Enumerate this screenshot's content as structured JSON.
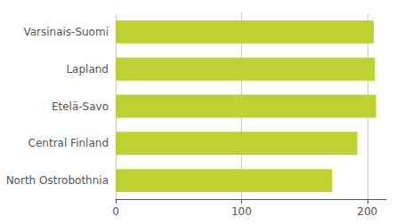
{
  "chart_data": {
    "type": "bar",
    "orientation": "horizontal",
    "categories": [
      "North Ostrobothnia",
      "Central Finland",
      "Etelä-Savo",
      "Lapland",
      "Varsinais-Suomi"
    ],
    "values": [
      172,
      192,
      207,
      206,
      205
    ],
    "color": "#bdd133",
    "xlim": [
      0,
      215
    ],
    "xticks": [
      0,
      100,
      200
    ],
    "grid": true
  }
}
